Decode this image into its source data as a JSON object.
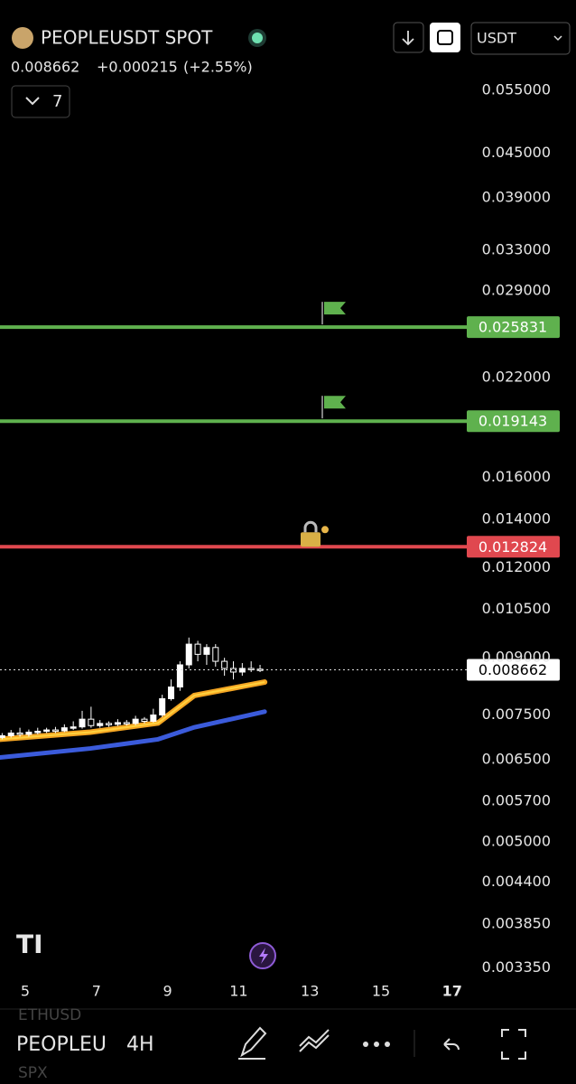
{
  "header": {
    "symbol": "PEOPLEUSDT SPOT",
    "price": "0.008662",
    "change": "+0.000215",
    "change_pct": "(+2.55%)",
    "indicators": "7",
    "currency": "USDT"
  },
  "footer": {
    "compare_top": "ETHUSD",
    "symbol": "PEOPLEU",
    "interval": "4H",
    "compare_bottom": "SPX"
  },
  "chart_data": {
    "type": "candlestick",
    "log_scale": true,
    "ylim": [
      0.00322,
      0.0574
    ],
    "yticks": [
      {
        "value": 0.055,
        "label": "0.055000"
      },
      {
        "value": 0.045,
        "label": "0.045000"
      },
      {
        "value": 0.039,
        "label": "0.039000"
      },
      {
        "value": 0.033,
        "label": "0.033000"
      },
      {
        "value": 0.029,
        "label": "0.029000"
      },
      {
        "value": 0.022,
        "label": "0.022000"
      },
      {
        "value": 0.016,
        "label": "0.016000"
      },
      {
        "value": 0.014,
        "label": "0.014000"
      },
      {
        "value": 0.012,
        "label": "0.012000"
      },
      {
        "value": 0.0105,
        "label": "0.010500"
      },
      {
        "value": 0.009,
        "label": "0.009000"
      },
      {
        "value": 0.0075,
        "label": "0.007500"
      },
      {
        "value": 0.0065,
        "label": "0.006500"
      },
      {
        "value": 0.0057,
        "label": "0.005700"
      },
      {
        "value": 0.005,
        "label": "0.005000"
      },
      {
        "value": 0.0044,
        "label": "0.004400"
      },
      {
        "value": 0.00385,
        "label": "0.003850"
      },
      {
        "value": 0.00335,
        "label": "0.003350"
      }
    ],
    "xlim": [
      4.29,
      17.36
    ],
    "xticks": [
      5,
      7,
      9,
      11,
      13,
      15,
      17
    ],
    "x": [
      4.35,
      4.6,
      4.85,
      5.1,
      5.35,
      5.6,
      5.85,
      6.1,
      6.35,
      6.6,
      6.85,
      7.1,
      7.35,
      7.6,
      7.85,
      8.1,
      8.35,
      8.6,
      8.85,
      9.1,
      9.35,
      9.6,
      9.85,
      10.1,
      10.35,
      10.6,
      10.85,
      11.1,
      11.35,
      11.6
    ],
    "open": [
      0.00698,
      0.00702,
      0.00708,
      0.00705,
      0.0071,
      0.00712,
      0.00715,
      0.00713,
      0.0072,
      0.00722,
      0.0074,
      0.00725,
      0.0073,
      0.00728,
      0.00732,
      0.0073,
      0.0074,
      0.00735,
      0.0075,
      0.0079,
      0.0082,
      0.0088,
      0.0094,
      0.0091,
      0.0093,
      0.0089,
      0.0087,
      0.0086,
      0.0087,
      0.00868
    ],
    "high": [
      0.00708,
      0.00715,
      0.0072,
      0.00716,
      0.0072,
      0.0072,
      0.00722,
      0.00728,
      0.00735,
      0.0076,
      0.0077,
      0.00738,
      0.00735,
      0.0074,
      0.00738,
      0.00748,
      0.00745,
      0.00765,
      0.008,
      0.0084,
      0.0089,
      0.0096,
      0.0095,
      0.0094,
      0.0094,
      0.009,
      0.0089,
      0.00885,
      0.0089,
      0.0088
    ],
    "low": [
      0.00694,
      0.00698,
      0.007,
      0.007,
      0.00705,
      0.00708,
      0.00708,
      0.0071,
      0.00715,
      0.00718,
      0.0072,
      0.0072,
      0.00722,
      0.00724,
      0.00725,
      0.00726,
      0.0073,
      0.00732,
      0.00745,
      0.00785,
      0.0081,
      0.0087,
      0.0089,
      0.0088,
      0.00875,
      0.0085,
      0.0084,
      0.0085,
      0.0086,
      0.0086
    ],
    "close": [
      0.00702,
      0.00708,
      0.00705,
      0.0071,
      0.00712,
      0.00715,
      0.00713,
      0.0072,
      0.00722,
      0.0074,
      0.00725,
      0.0073,
      0.00728,
      0.00732,
      0.0073,
      0.0074,
      0.00735,
      0.0075,
      0.0079,
      0.0082,
      0.0088,
      0.0094,
      0.0091,
      0.0093,
      0.0089,
      0.0087,
      0.0086,
      0.0087,
      0.00868,
      0.008662
    ],
    "candle_color": "#ffffff",
    "lines": [
      {
        "color": "#f5a623",
        "x": [
          4.29,
          6.83,
          8.73,
          9.75,
          11.73
        ],
        "values": [
          0.00694,
          0.0071,
          0.00731,
          0.00798,
          0.00833
        ]
      },
      {
        "color": "#3b5bdb",
        "x": [
          4.29,
          6.83,
          8.73,
          9.75,
          11.73
        ],
        "values": [
          0.00655,
          0.00674,
          0.00694,
          0.00721,
          0.00758
        ]
      }
    ],
    "price_lines": [
      {
        "value": 0.025831,
        "color": "#5fb14e"
      },
      {
        "value": 0.019143,
        "color": "#5fb14e"
      },
      {
        "value": 0.012824,
        "color": "#e0484f"
      }
    ],
    "last_price": 0.008662
  }
}
